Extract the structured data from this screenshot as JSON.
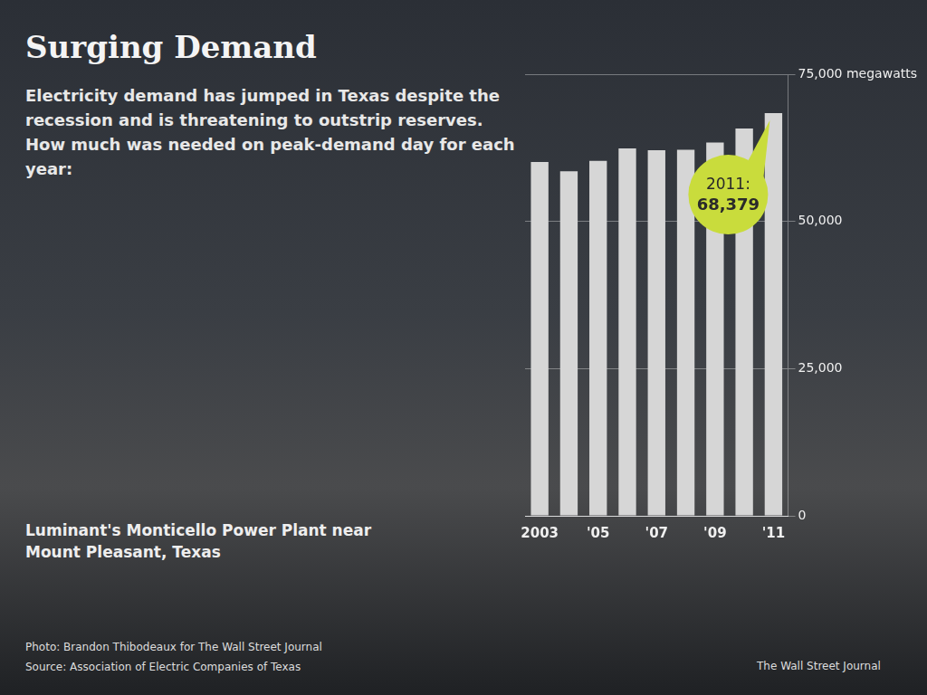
{
  "chart_data": {
    "type": "bar",
    "title": "Surging Demand",
    "subtitle": "Electricity demand has jumped in Texas despite the recession and is threatening to outstrip reserves. How much was needed on peak-demand day for each year:",
    "categories": [
      "2003",
      null,
      "'05",
      null,
      "'07",
      null,
      "'09",
      null,
      "'11"
    ],
    "values": [
      60095,
      58531,
      60274,
      62396,
      62101,
      62174,
      63400,
      65776,
      68379
    ],
    "value_labels": [
      null,
      null,
      null,
      null,
      null,
      null,
      null,
      null,
      "68,379"
    ],
    "annotation": "2011:",
    "color": "#d6d6d6",
    "ylim": [
      0,
      75000
    ],
    "yticks": [
      0,
      {
        "value": 25000,
        "label": "25,000"
      },
      {
        "value": 50000,
        "label": "50,000"
      },
      {
        "value": 75000,
        "label": "75,000 megawatts"
      }
    ],
    "grid": true
  },
  "photo_caption": "Luminant's Monticello Power Plant near Mount Pleasant, Texas",
  "credits": [
    "Photo: Brandon Thibodeaux for The Wall Street Journal",
    "Source: Association of Electric Companies of Texas"
  ],
  "publisher": "The Wall Street Journal"
}
